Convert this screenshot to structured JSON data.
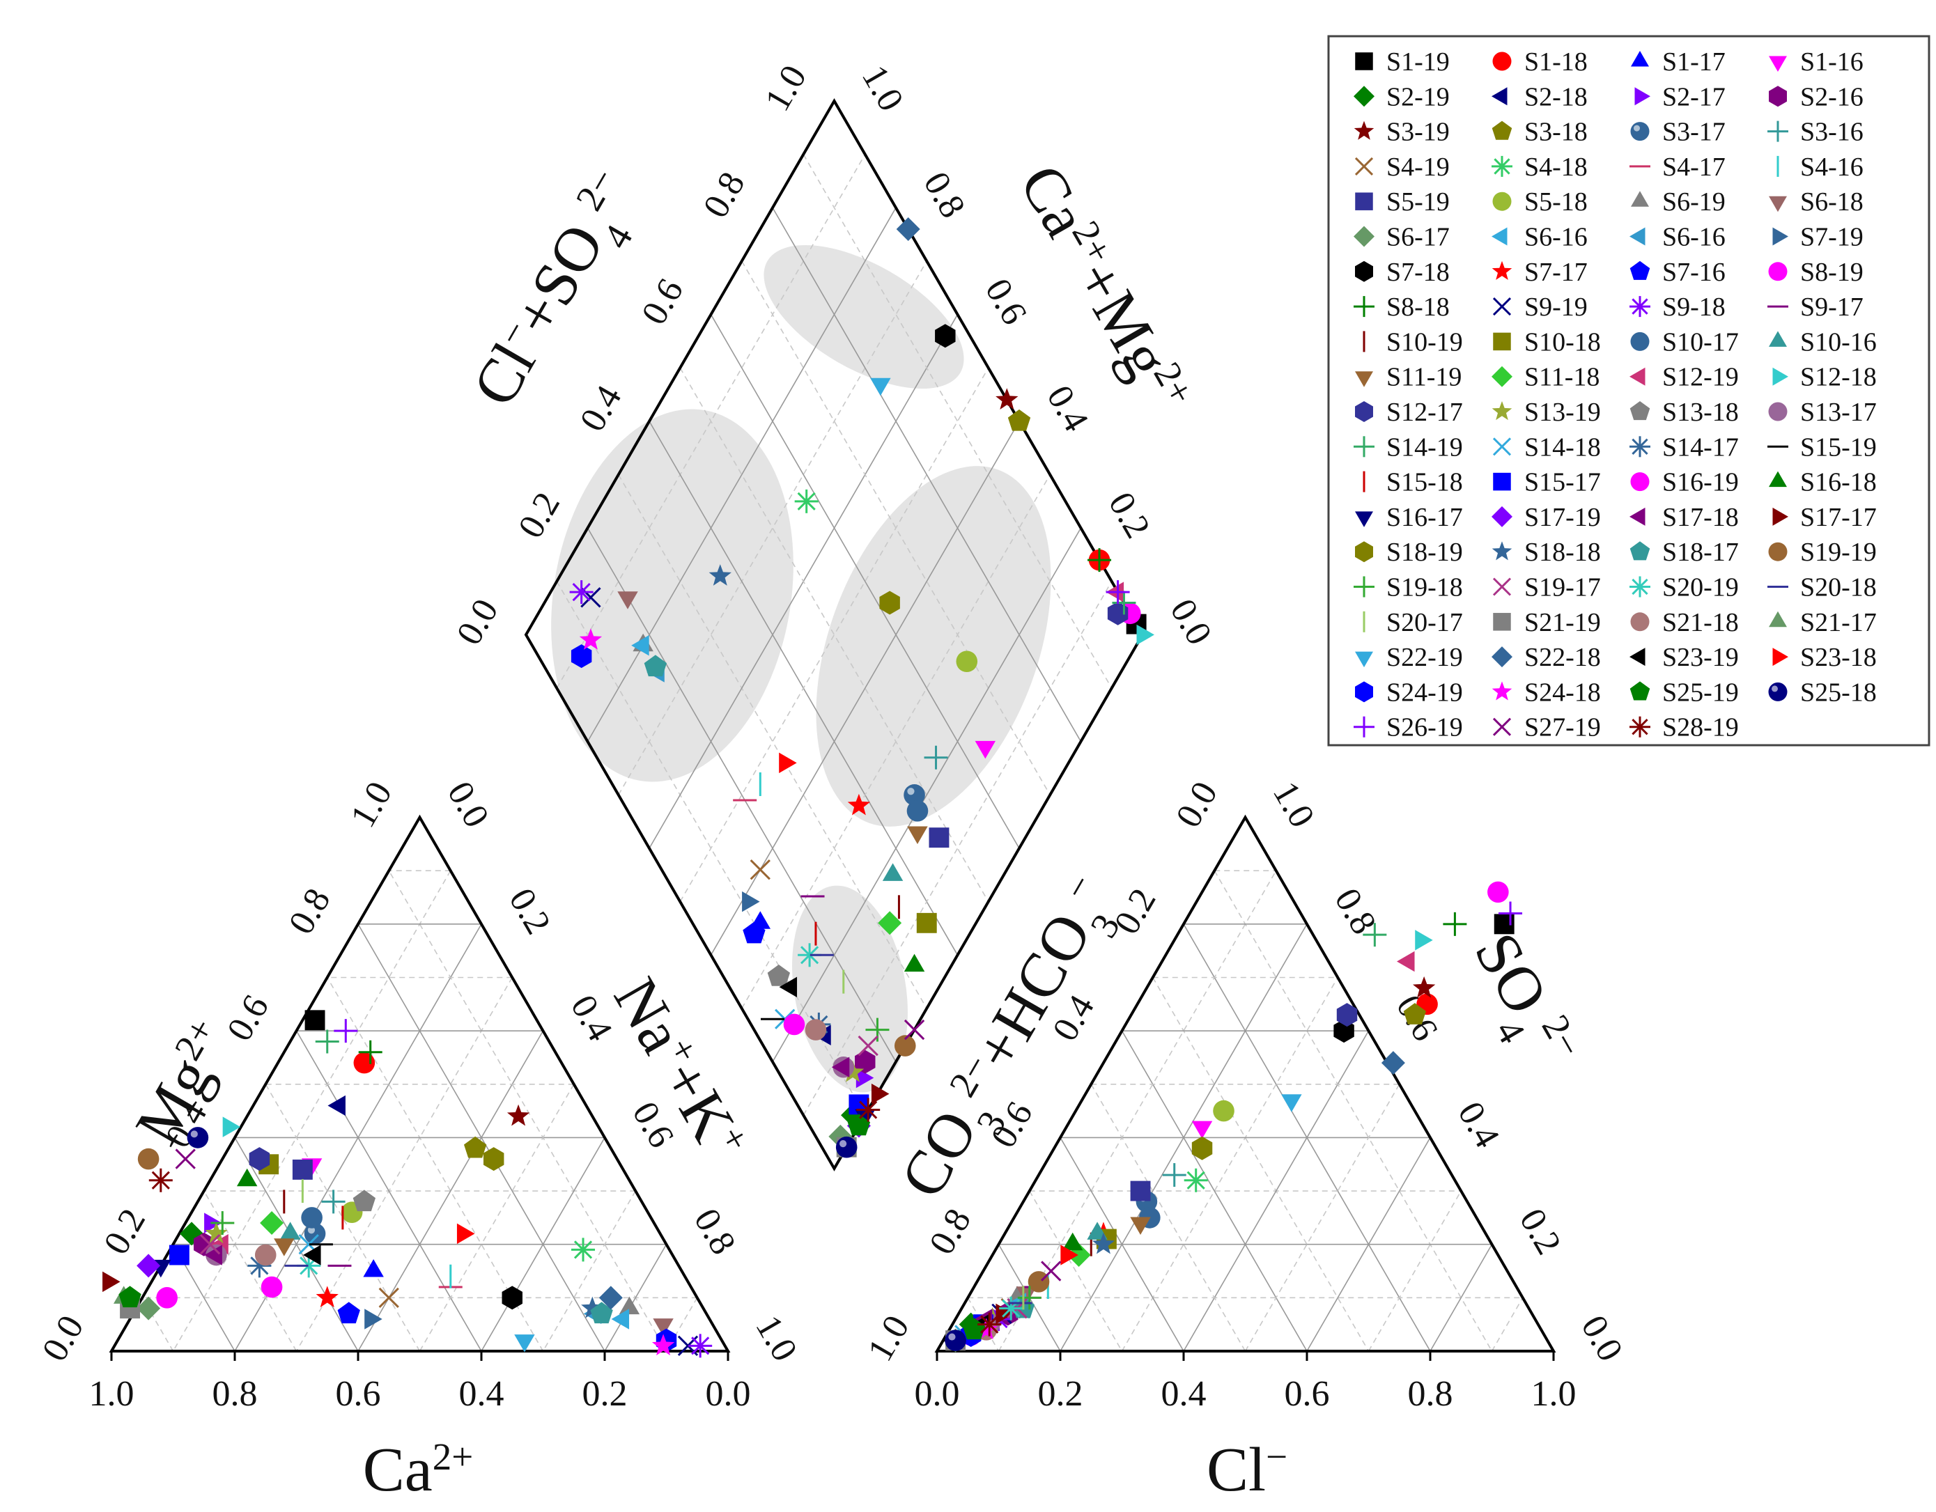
{
  "chart_data": {
    "type": "scatter",
    "title": "",
    "subtype": "piper diagram",
    "axis_titles": {
      "cation_left": "Mg2+",
      "cation_right": "Na++K+",
      "cation_bottom": "Ca2+",
      "anion_left": "CO32-+HCO3-",
      "anion_right": "SO42-",
      "anion_bottom": "Cl-",
      "diamond_left": "Cl-+SO42-",
      "diamond_right": "Ca2++Mg2+"
    },
    "ticks": {
      "cation_bottom": [
        "1.0",
        "0.8",
        "0.6",
        "0.4",
        "0.2",
        "0.0"
      ],
      "cation_left": [
        "0.0",
        "0.2",
        "0.4",
        "0.6",
        "0.8",
        "1.0"
      ],
      "cation_right": [
        "0.0",
        "0.2",
        "0.4",
        "0.6",
        "0.8",
        "1.0"
      ],
      "anion_bottom": [
        "0.0",
        "0.2",
        "0.4",
        "0.6",
        "0.8",
        "1.0"
      ],
      "anion_left": [
        "1.0",
        "0.8",
        "0.6",
        "0.4",
        "0.2",
        "0.0"
      ],
      "anion_right": [
        "0.0",
        "0.2",
        "0.4",
        "0.6",
        "0.8",
        "1.0"
      ],
      "diamond_left": [
        "0.0",
        "0.2",
        "0.4",
        "0.6",
        "0.8",
        "1.0"
      ],
      "diamond_right": [
        "0.0",
        "0.2",
        "0.4",
        "0.6",
        "0.8",
        "1.0"
      ]
    },
    "series": [
      {
        "name": "S1-19",
        "marker": "square",
        "color": "#000000",
        "ca": 0.36,
        "mg": 0.62,
        "cl": 0.52,
        "so4": 0.8
      },
      {
        "name": "S1-18",
        "marker": "circle",
        "color": "#ff0000",
        "ca": 0.32,
        "mg": 0.54,
        "cl": 0.47,
        "so4": 0.65
      },
      {
        "name": "S1-17",
        "marker": "triangle-up",
        "color": "#0000ff",
        "ca": 0.5,
        "mg": 0.15,
        "cl": 0.06,
        "so4": 0.05
      },
      {
        "name": "S1-16",
        "marker": "triangle-down",
        "color": "#ff00ff",
        "ca": 0.5,
        "mg": 0.35,
        "cl": 0.22,
        "so4": 0.42
      },
      {
        "name": "S2-19",
        "marker": "diamond",
        "color": "#008000",
        "ca": 0.76,
        "mg": 0.22,
        "cl": 0.03,
        "so4": 0.05
      },
      {
        "name": "S2-18",
        "marker": "triangle-left",
        "color": "#000080",
        "ca": 0.4,
        "mg": 0.46,
        "cl": 0.06,
        "so4": 0.05
      },
      {
        "name": "S2-17",
        "marker": "triangle-right",
        "color": "#8000ff",
        "ca": 0.72,
        "mg": 0.24,
        "cl": 0.07,
        "so4": 0.06
      },
      {
        "name": "S2-16",
        "marker": "hexagon",
        "color": "#800080",
        "ca": 0.75,
        "mg": 0.2,
        "cl": 0.08,
        "so4": 0.07
      },
      {
        "name": "S3-19",
        "marker": "star",
        "color": "#800000",
        "ca": 0.12,
        "mg": 0.44,
        "cl": 0.45,
        "so4": 0.68
      },
      {
        "name": "S3-18",
        "marker": "pentagon",
        "color": "#808000",
        "ca": 0.22,
        "mg": 0.38,
        "cl": 0.46,
        "so4": 0.63
      },
      {
        "name": "S3-17",
        "marker": "ball",
        "color": "#336699",
        "ca": 0.56,
        "mg": 0.22,
        "cl": 0.2,
        "so4": 0.28
      },
      {
        "name": "S3-16",
        "marker": "plus",
        "color": "#339999",
        "ca": 0.5,
        "mg": 0.28,
        "cl": 0.22,
        "so4": 0.33
      },
      {
        "name": "S4-19",
        "marker": "x",
        "color": "#996633",
        "ca": 0.5,
        "mg": 0.1,
        "cl": 0.08,
        "so4": 0.08
      },
      {
        "name": "S4-18",
        "marker": "asterisk",
        "color": "#33cc66",
        "ca": 0.14,
        "mg": 0.19,
        "cl": 0.26,
        "so4": 0.32
      },
      {
        "name": "S4-17",
        "marker": "hline",
        "color": "#cc3366",
        "ca": 0.39,
        "mg": 0.12,
        "cl": 0.1,
        "so4": 0.1
      },
      {
        "name": "S4-16",
        "marker": "vline",
        "color": "#33cccc",
        "ca": 0.38,
        "mg": 0.14,
        "cl": 0.12,
        "so4": 0.12
      },
      {
        "name": "S5-19",
        "marker": "square",
        "color": "#333399",
        "ca": 0.52,
        "mg": 0.34,
        "cl": 0.18,
        "so4": 0.3
      },
      {
        "name": "S5-18",
        "marker": "circle",
        "color": "#99bb33",
        "ca": 0.48,
        "mg": 0.26,
        "cl": 0.24,
        "so4": 0.45
      },
      {
        "name": "S6-19",
        "marker": "triangle-up",
        "color": "#808080",
        "ca": 0.12,
        "mg": 0.08,
        "cl": 0.08,
        "so4": 0.1
      },
      {
        "name": "S6-18",
        "marker": "triangle-down",
        "color": "#996666",
        "ca": 0.08,
        "mg": 0.05,
        "cl": 0.09,
        "so4": 0.11
      },
      {
        "name": "S6-17",
        "marker": "diamond",
        "color": "#669966",
        "ca": 0.9,
        "mg": 0.08,
        "cl": 0.02,
        "so4": 0.02
      },
      {
        "name": "S6-16",
        "marker": "triangle-left",
        "color": "#33aadd",
        "ca": 0.14,
        "mg": 0.06,
        "cl": 0.09,
        "so4": 0.09
      },
      {
        "name": "S6-16",
        "marker": "triangle-left",
        "color": "#3399cc",
        "ca": 0.18,
        "mg": 0.07,
        "cl": 0.1,
        "so4": 0.08
      },
      {
        "name": "S7-19",
        "marker": "triangle-right",
        "color": "#336699",
        "ca": 0.55,
        "mg": 0.06,
        "cl": 0.06,
        "so4": 0.05
      },
      {
        "name": "S7-18",
        "marker": "hexagon",
        "color": "#000000",
        "ca": 0.3,
        "mg": 0.1,
        "cl": 0.36,
        "so4": 0.6
      },
      {
        "name": "S7-17",
        "marker": "star",
        "color": "#ff0000",
        "ca": 0.6,
        "mg": 0.1,
        "cl": 0.16,
        "so4": 0.22
      },
      {
        "name": "S7-16",
        "marker": "pentagon",
        "color": "#0000ff",
        "ca": 0.58,
        "mg": 0.07,
        "cl": 0.05,
        "so4": 0.04
      },
      {
        "name": "S8-19",
        "marker": "circle",
        "color": "#ff00ff",
        "ca": 0.86,
        "mg": 0.1,
        "cl": 0.48,
        "so4": 0.86
      },
      {
        "name": "S8-18",
        "marker": "plus",
        "color": "#008000",
        "ca": 0.3,
        "mg": 0.56,
        "cl": 0.44,
        "so4": 0.8
      },
      {
        "name": "S9-19",
        "marker": "x",
        "color": "#000080",
        "ca": 0.06,
        "mg": 0.01,
        "cl": 0.07,
        "so4": 0.07
      },
      {
        "name": "S9-18",
        "marker": "asterisk",
        "color": "#8000ff",
        "ca": 0.04,
        "mg": 0.01,
        "cl": 0.07,
        "so4": 0.06
      },
      {
        "name": "S9-17",
        "marker": "hline",
        "color": "#800080",
        "ca": 0.55,
        "mg": 0.16,
        "cl": 0.1,
        "so4": 0.12
      },
      {
        "name": "S10-19",
        "marker": "vline",
        "color": "#800000",
        "ca": 0.58,
        "mg": 0.28,
        "cl": 0.15,
        "so4": 0.2
      },
      {
        "name": "S10-18",
        "marker": "square",
        "color": "#808000",
        "ca": 0.57,
        "mg": 0.35,
        "cl": 0.17,
        "so4": 0.21
      },
      {
        "name": "S10-17",
        "marker": "circle",
        "color": "#336699",
        "ca": 0.55,
        "mg": 0.25,
        "cl": 0.22,
        "so4": 0.25
      },
      {
        "name": "S10-16",
        "marker": "triangle-up",
        "color": "#339999",
        "ca": 0.6,
        "mg": 0.22,
        "cl": 0.15,
        "so4": 0.22
      },
      {
        "name": "S11-19",
        "marker": "triangle-down",
        "color": "#996633",
        "ca": 0.62,
        "mg": 0.2,
        "cl": 0.21,
        "so4": 0.24
      },
      {
        "name": "S11-18",
        "marker": "diamond",
        "color": "#33cc33",
        "ca": 0.62,
        "mg": 0.24,
        "cl": 0.14,
        "so4": 0.18
      },
      {
        "name": "S12-19",
        "marker": "triangle-left",
        "color": "#cc3377",
        "ca": 0.72,
        "mg": 0.2,
        "cl": 0.4,
        "so4": 0.73
      },
      {
        "name": "S12-18",
        "marker": "triangle-right",
        "color": "#33cccc",
        "ca": 0.6,
        "mg": 0.42,
        "cl": 0.4,
        "so4": 0.77
      },
      {
        "name": "S12-17",
        "marker": "hexagon",
        "color": "#333399",
        "ca": 0.58,
        "mg": 0.36,
        "cl": 0.35,
        "so4": 0.63
      },
      {
        "name": "S13-19",
        "marker": "star",
        "color": "#99aa33",
        "ca": 0.72,
        "mg": 0.22,
        "cl": 0.06,
        "so4": 0.06
      },
      {
        "name": "S13-18",
        "marker": "pentagon",
        "color": "#808080",
        "ca": 0.45,
        "mg": 0.28,
        "cl": 0.05,
        "so4": 0.04
      },
      {
        "name": "S13-17",
        "marker": "circle",
        "color": "#996699",
        "ca": 0.74,
        "mg": 0.18,
        "cl": 0.06,
        "so4": 0.05
      },
      {
        "name": "S14-19",
        "marker": "plus",
        "color": "#33aa66",
        "ca": 0.36,
        "mg": 0.58,
        "cl": 0.32,
        "so4": 0.78
      },
      {
        "name": "S14-18",
        "marker": "x",
        "color": "#33aadd",
        "ca": 0.58,
        "mg": 0.2,
        "cl": 0.03,
        "so4": 0.03
      },
      {
        "name": "S14-17",
        "marker": "asterisk",
        "color": "#336699",
        "ca": 0.68,
        "mg": 0.16,
        "cl": 0.06,
        "so4": 0.05
      },
      {
        "name": "S15-19",
        "marker": "hline",
        "color": "#000000",
        "ca": 0.56,
        "mg": 0.2,
        "cl": 0.02,
        "so4": 0.02
      },
      {
        "name": "S15-18",
        "marker": "vline",
        "color": "#cc0000",
        "ca": 0.5,
        "mg": 0.25,
        "cl": 0.09,
        "so4": 0.1
      },
      {
        "name": "S15-17",
        "marker": "square",
        "color": "#0000ff",
        "ca": 0.8,
        "mg": 0.18,
        "cl": 0.05,
        "so4": 0.05
      },
      {
        "name": "S16-19",
        "marker": "circle",
        "color": "#ff00ff",
        "ca": 0.68,
        "mg": 0.12,
        "cl": 0.04,
        "so4": 0.03
      },
      {
        "name": "S16-18",
        "marker": "triangle-up",
        "color": "#008000",
        "ca": 0.62,
        "mg": 0.32,
        "cl": 0.12,
        "so4": 0.2
      },
      {
        "name": "S16-17",
        "marker": "triangle-down",
        "color": "#000080",
        "ca": 0.84,
        "mg": 0.16,
        "cl": 0.05,
        "so4": 0.05
      },
      {
        "name": "S17-19",
        "marker": "diamond",
        "color": "#8000ff",
        "ca": 0.86,
        "mg": 0.16,
        "cl": 0.04,
        "so4": 0.04
      },
      {
        "name": "S17-18",
        "marker": "triangle-left",
        "color": "#800080",
        "ca": 0.74,
        "mg": 0.18,
        "cl": 0.05,
        "so4": 0.06
      },
      {
        "name": "S17-17",
        "marker": "triangle-right",
        "color": "#800000",
        "ca": 0.94,
        "mg": 0.13,
        "cl": 0.07,
        "so4": 0.07
      },
      {
        "name": "S18-19",
        "marker": "hexagon",
        "color": "#808000",
        "ca": 0.2,
        "mg": 0.36,
        "cl": 0.24,
        "so4": 0.38
      },
      {
        "name": "S18-18",
        "marker": "star",
        "color": "#336699",
        "ca": 0.18,
        "mg": 0.08,
        "cl": 0.17,
        "so4": 0.2
      },
      {
        "name": "S18-17",
        "marker": "pentagon",
        "color": "#339999",
        "ca": 0.17,
        "mg": 0.07,
        "cl": 0.1,
        "so4": 0.08
      },
      {
        "name": "S19-19",
        "marker": "circle",
        "color": "#996633",
        "ca": 0.76,
        "mg": 0.36,
        "cl": 0.1,
        "so4": 0.13
      },
      {
        "name": "S19-18",
        "marker": "plus",
        "color": "#33aa33",
        "ca": 0.7,
        "mg": 0.24,
        "cl": 0.1,
        "so4": 0.1
      },
      {
        "name": "S19-17",
        "marker": "x",
        "color": "#aa3388",
        "ca": 0.74,
        "mg": 0.2,
        "cl": 0.09,
        "so4": 0.08
      },
      {
        "name": "S20-19",
        "marker": "asterisk",
        "color": "#33ccbb",
        "ca": 0.6,
        "mg": 0.16,
        "cl": 0.08,
        "so4": 0.08
      },
      {
        "name": "S20-18",
        "marker": "hline",
        "color": "#333399",
        "ca": 0.62,
        "mg": 0.16,
        "cl": 0.09,
        "so4": 0.09
      },
      {
        "name": "S20-17",
        "marker": "vline",
        "color": "#99cc66",
        "ca": 0.54,
        "mg": 0.3,
        "cl": 0.09,
        "so4": 0.1
      },
      {
        "name": "S21-19",
        "marker": "square",
        "color": "#808080",
        "ca": 0.93,
        "mg": 0.08,
        "cl": 0.02,
        "so4": 0.02
      },
      {
        "name": "S21-18",
        "marker": "circle",
        "color": "#aa7777",
        "ca": 0.66,
        "mg": 0.18,
        "cl": 0.06,
        "so4": 0.04
      },
      {
        "name": "S21-17",
        "marker": "triangle-up",
        "color": "#669966",
        "ca": 0.93,
        "mg": 0.1,
        "cl": 0.02,
        "so4": 0.02
      },
      {
        "name": "S22-19",
        "marker": "triangle-down",
        "color": "#33aadd",
        "ca": 0.32,
        "mg": 0.02,
        "cl": 0.34,
        "so4": 0.47
      },
      {
        "name": "S22-18",
        "marker": "diamond",
        "color": "#336699",
        "ca": 0.14,
        "mg": 0.1,
        "cl": 0.47,
        "so4": 0.54
      },
      {
        "name": "S23-19",
        "marker": "triangle-left",
        "color": "#000000",
        "ca": 0.58,
        "mg": 0.18,
        "cl": 0.05,
        "so4": 0.05
      },
      {
        "name": "S23-18",
        "marker": "triangle-right",
        "color": "#ff0000",
        "ca": 0.32,
        "mg": 0.22,
        "cl": 0.12,
        "so4": 0.18
      },
      {
        "name": "S24-19",
        "marker": "hexagon",
        "color": "#0000ff",
        "ca": 0.09,
        "mg": 0.02,
        "cl": 0.04,
        "so4": 0.03
      },
      {
        "name": "S24-18",
        "marker": "star",
        "color": "#ff00ff",
        "ca": 0.1,
        "mg": 0.01,
        "cl": 0.06,
        "so4": 0.04
      },
      {
        "name": "S25-19",
        "marker": "pentagon",
        "color": "#008000",
        "ca": 0.92,
        "mg": 0.1,
        "cl": 0.04,
        "so4": 0.04
      },
      {
        "name": "S25-18",
        "marker": "ball",
        "color": "#000080",
        "ca": 0.66,
        "mg": 0.4,
        "cl": 0.02,
        "so4": 0.02
      },
      {
        "name": "S26-19",
        "marker": "plus",
        "color": "#8000ff",
        "ca": 0.32,
        "mg": 0.6,
        "cl": 0.52,
        "so4": 0.82
      },
      {
        "name": "S27-19",
        "marker": "x",
        "color": "#800080",
        "ca": 0.7,
        "mg": 0.36,
        "cl": 0.11,
        "so4": 0.15
      },
      {
        "name": "S28-19",
        "marker": "asterisk",
        "color": "#800000",
        "ca": 0.76,
        "mg": 0.32,
        "cl": 0.06,
        "so4": 0.05
      }
    ]
  }
}
